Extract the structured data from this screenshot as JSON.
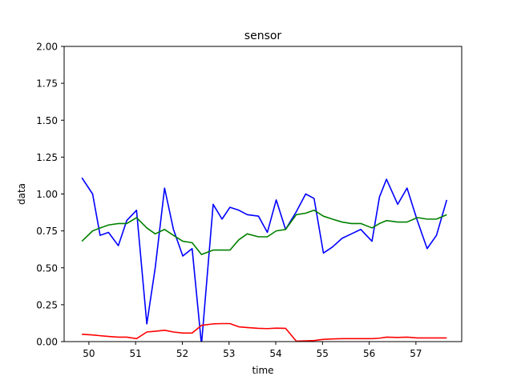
{
  "chart_data": {
    "type": "line",
    "title": "sensor",
    "xlabel": "time",
    "ylabel": "data",
    "xlim": [
      49.47,
      57.98
    ],
    "ylim": [
      0.0,
      2.0
    ],
    "xticks": [
      50,
      51,
      52,
      53,
      54,
      55,
      56,
      57
    ],
    "xtick_labels": [
      "50",
      "51",
      "52",
      "53",
      "54",
      "55",
      "56",
      "57"
    ],
    "yticks": [
      0.0,
      0.25,
      0.5,
      0.75,
      1.0,
      1.25,
      1.5,
      1.75,
      2.0
    ],
    "ytick_labels": [
      "0.00",
      "0.25",
      "0.50",
      "0.75",
      "1.00",
      "1.25",
      "1.50",
      "1.75",
      "2.00"
    ],
    "grid": false,
    "x": [
      49.85,
      50.08,
      50.24,
      50.42,
      50.63,
      50.81,
      51.02,
      51.24,
      51.42,
      51.62,
      51.81,
      52.01,
      52.21,
      52.41,
      52.66,
      52.85,
      53.02,
      53.21,
      53.39,
      53.63,
      53.82,
      54.01,
      54.21,
      54.44,
      54.64,
      54.82,
      55.02,
      55.21,
      55.42,
      55.62,
      55.82,
      56.06,
      56.22,
      56.37,
      56.61,
      56.81,
      57.03,
      57.24,
      57.44,
      57.66
    ],
    "series": [
      {
        "color": "#0000ff",
        "values": [
          1.11,
          1.0,
          0.72,
          0.74,
          0.65,
          0.82,
          0.89,
          0.12,
          0.5,
          1.04,
          0.76,
          0.58,
          0.63,
          -0.02,
          0.93,
          0.83,
          0.91,
          0.89,
          0.86,
          0.85,
          0.74,
          0.96,
          0.76,
          0.88,
          1.0,
          0.97,
          0.6,
          0.64,
          0.7,
          0.73,
          0.76,
          0.68,
          0.98,
          1.1,
          0.93,
          1.04,
          0.82,
          0.63,
          0.72,
          0.96
        ]
      },
      {
        "color": "#008000",
        "values": [
          0.68,
          0.75,
          0.77,
          0.79,
          0.8,
          0.8,
          0.84,
          0.77,
          0.73,
          0.76,
          0.72,
          0.68,
          0.67,
          0.59,
          0.62,
          0.62,
          0.62,
          0.69,
          0.73,
          0.71,
          0.71,
          0.75,
          0.76,
          0.86,
          0.87,
          0.89,
          0.85,
          0.83,
          0.81,
          0.8,
          0.8,
          0.77,
          0.8,
          0.82,
          0.81,
          0.81,
          0.84,
          0.83,
          0.83,
          0.86
        ]
      },
      {
        "color": "#ff0000",
        "values": [
          0.05,
          0.045,
          0.04,
          0.035,
          0.03,
          0.03,
          0.02,
          0.065,
          0.07,
          0.077,
          0.065,
          0.058,
          0.058,
          0.11,
          0.12,
          0.122,
          0.122,
          0.1,
          0.095,
          0.09,
          0.088,
          0.091,
          0.09,
          0.003,
          0.005,
          0.007,
          0.015,
          0.018,
          0.02,
          0.02,
          0.02,
          0.02,
          0.023,
          0.03,
          0.028,
          0.03,
          0.025,
          0.025,
          0.025,
          0.025
        ]
      }
    ]
  }
}
